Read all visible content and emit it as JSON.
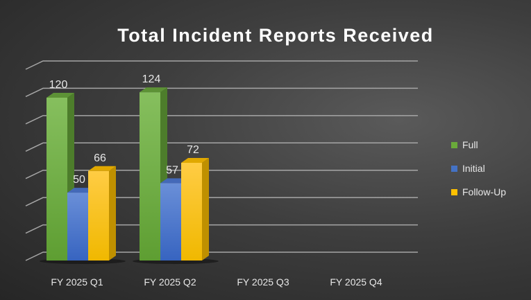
{
  "chart_data": {
    "type": "bar",
    "title": "Total Incident Reports Received",
    "categories": [
      "FY 2025 Q1",
      "FY 2025 Q2",
      "FY 2025 Q3",
      "FY 2025 Q4"
    ],
    "series": [
      {
        "name": "Full",
        "values": [
          120,
          124,
          null,
          null
        ],
        "color": "#6aaa3a"
      },
      {
        "name": "Initial",
        "values": [
          50,
          57,
          null,
          null
        ],
        "color": "#4472c4"
      },
      {
        "name": "Follow-Up",
        "values": [
          66,
          72,
          null,
          null
        ],
        "color": "#ffc000"
      }
    ],
    "ylim": [
      0,
      140
    ],
    "ystep": 20,
    "grid": true,
    "legend": "right",
    "xlabel": "",
    "ylabel": ""
  }
}
